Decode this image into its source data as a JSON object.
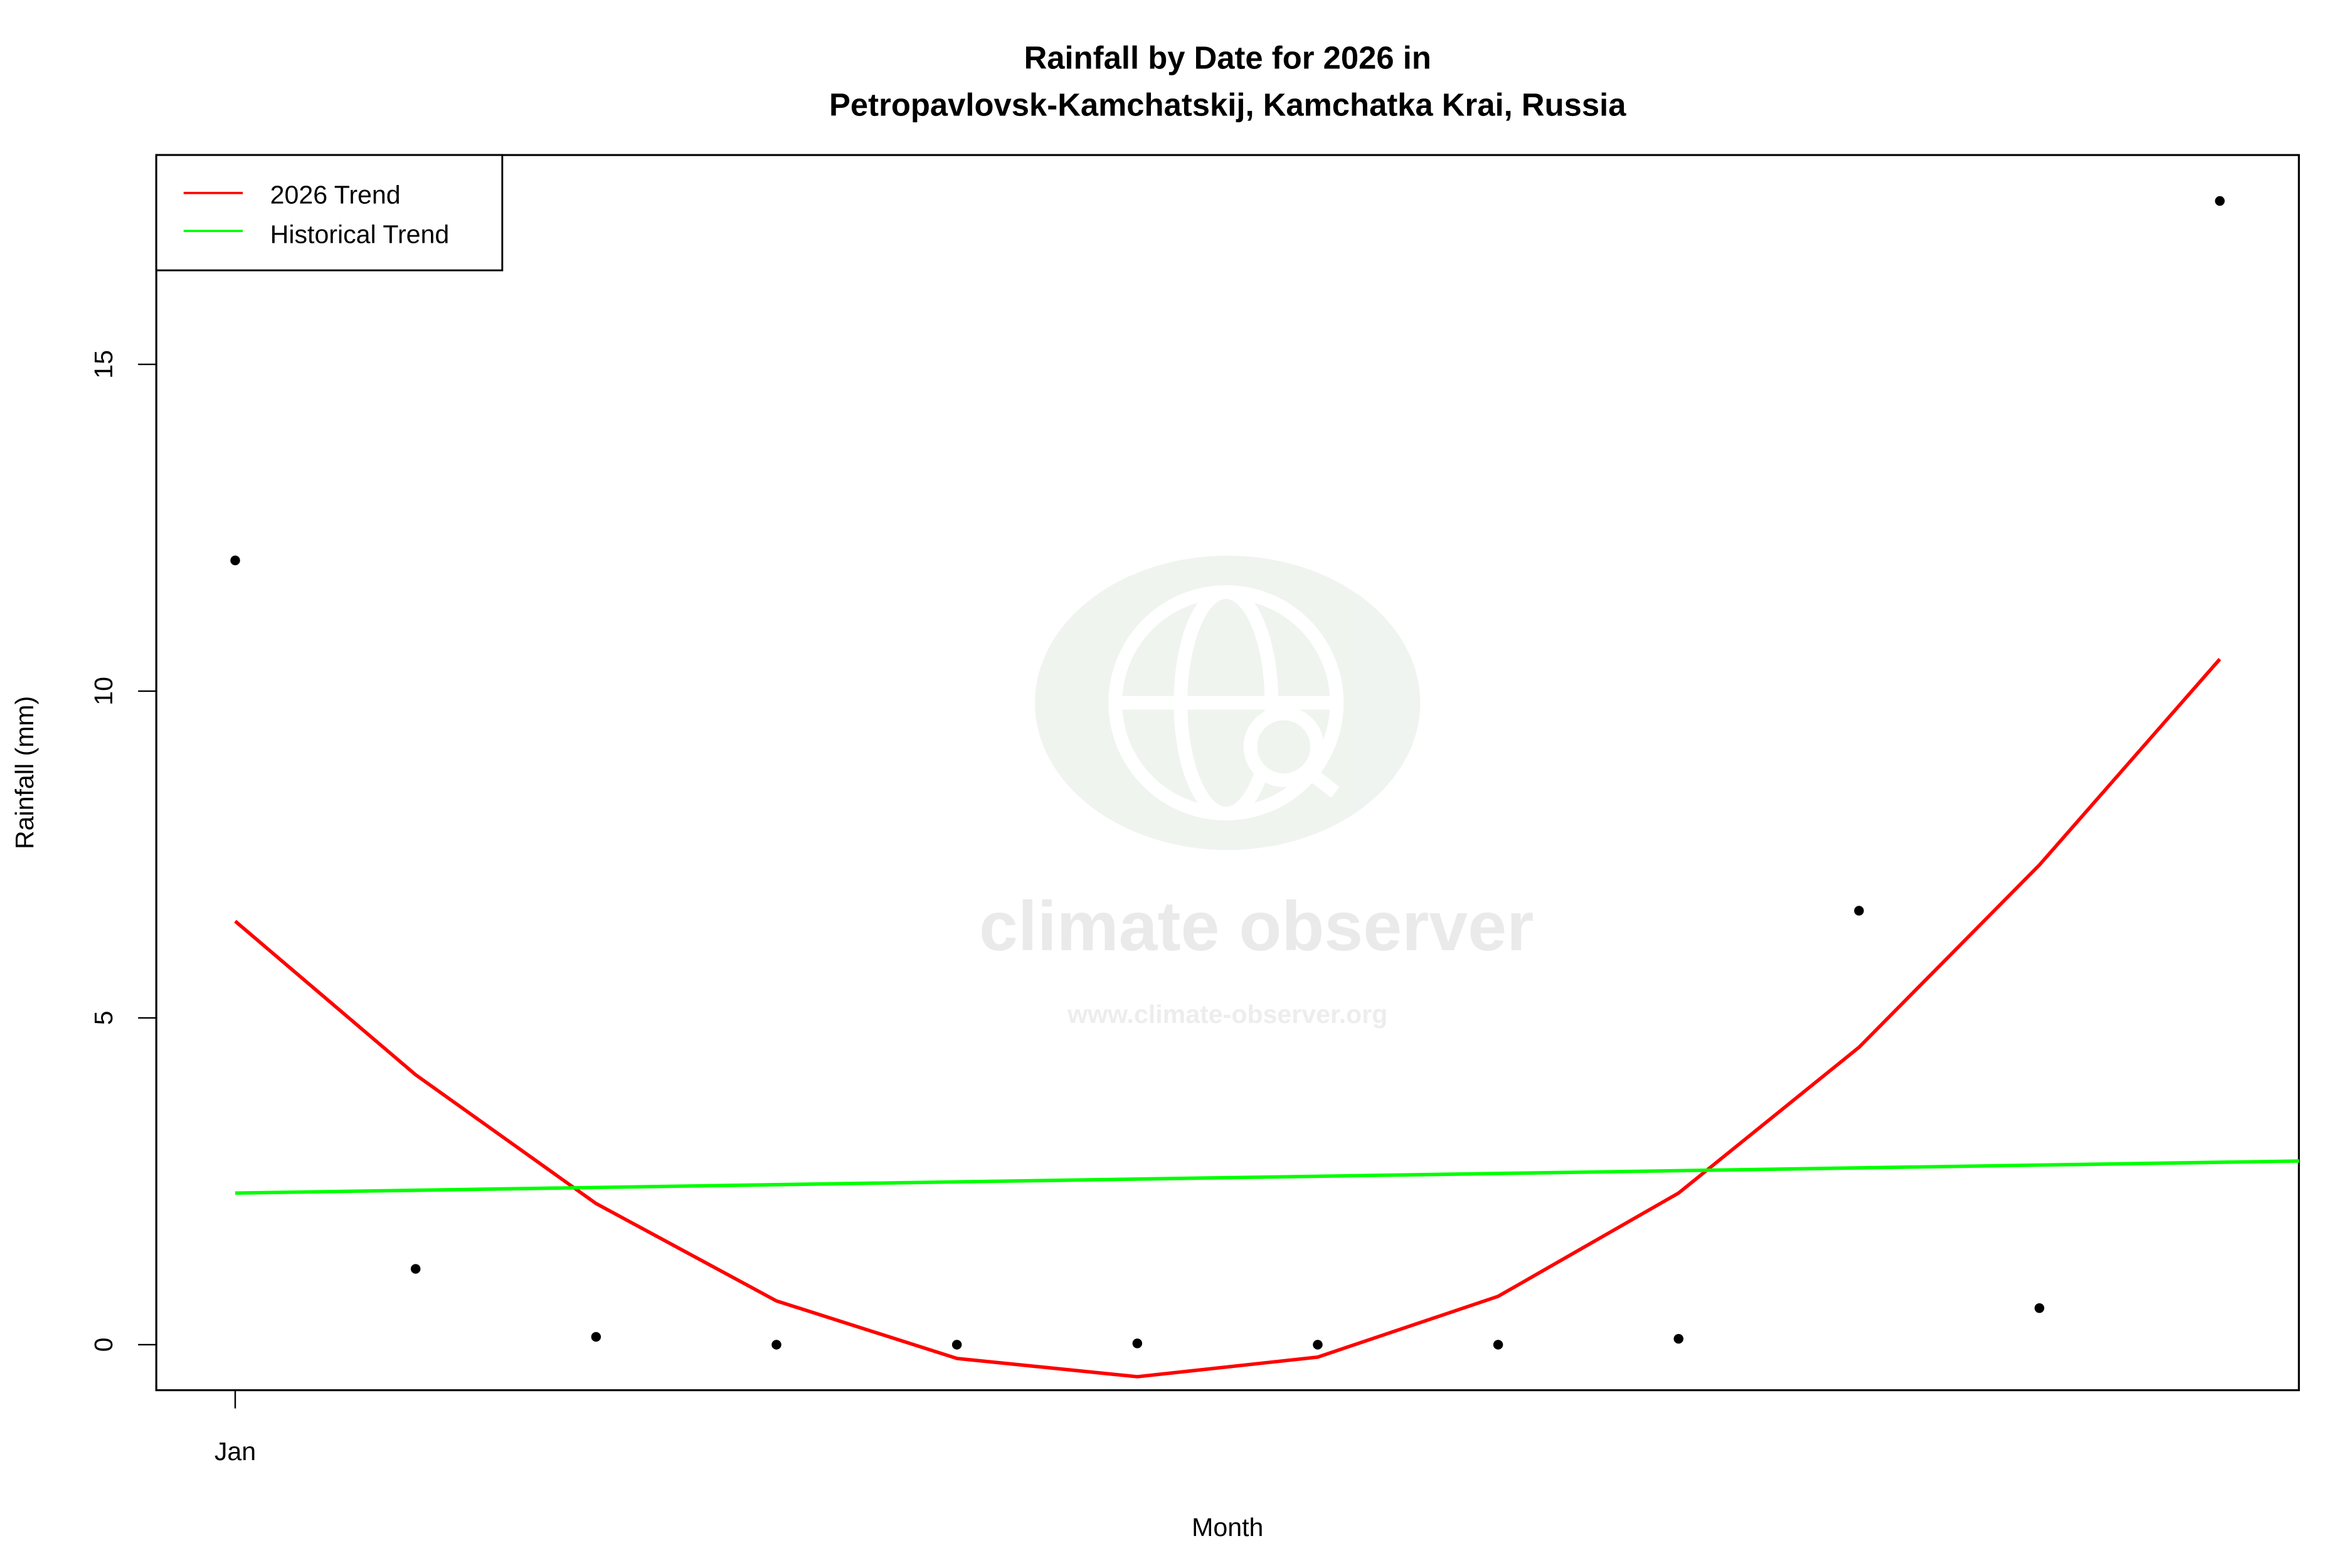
{
  "chart_data": {
    "type": "line",
    "title": "Rainfall by Date for 2026 in",
    "subtitle": "Petropavlovsk-Kamchatskij, Kamchatka Krai, Russia",
    "xlabel": "Month",
    "ylabel": "Rainfall (mm)",
    "x_tick_labels": [
      {
        "x": 1,
        "label": "Jan"
      }
    ],
    "y_ticks": [
      0,
      5,
      10,
      15
    ],
    "ylim": [
      -0.7,
      18.2
    ],
    "xlim": [
      0.56,
      12.44
    ],
    "grid": false,
    "legend": {
      "placement": "top-left",
      "entries": [
        {
          "label": "2026 Trend",
          "color": "#ff0000"
        },
        {
          "label": "Historical Trend",
          "color": "#00ff00"
        }
      ]
    },
    "points": {
      "name": "Observed rainfall",
      "color": "#000000",
      "x": [
        1,
        2,
        3,
        4,
        5,
        6,
        7,
        8,
        9,
        10,
        11,
        12
      ],
      "y": [
        12.0,
        1.16,
        0.12,
        0.0,
        0.0,
        0.02,
        0.0,
        0.0,
        0.09,
        6.64,
        0.56,
        17.5
      ]
    },
    "series": [
      {
        "name": "2026 Trend",
        "color": "#ff0000",
        "x": [
          1,
          2,
          3,
          4,
          5,
          6,
          7,
          8,
          9,
          10,
          11,
          12
        ],
        "y": [
          6.48,
          4.13,
          2.16,
          0.67,
          -0.21,
          -0.49,
          -0.19,
          0.74,
          2.32,
          4.55,
          7.34,
          10.49
        ]
      },
      {
        "name": "Historical Trend",
        "color": "#00ff00",
        "x": [
          1,
          12.44
        ],
        "y": [
          2.32,
          2.81
        ]
      }
    ]
  },
  "watermark": {
    "name": "climate observer",
    "url": "www.climate-observer.org"
  }
}
